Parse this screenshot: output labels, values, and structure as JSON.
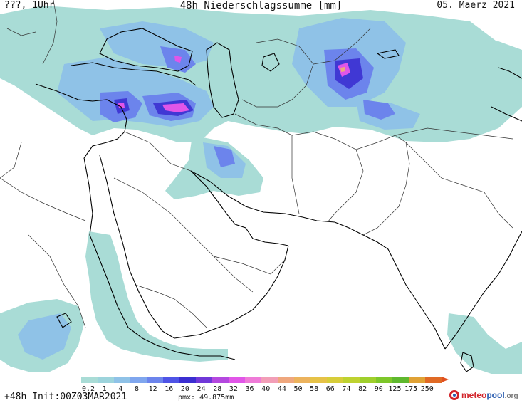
{
  "header": {
    "left": "???, 1Uhr",
    "title": "48h Niederschlagssumme [mm]",
    "date": "05. Maerz 2021"
  },
  "legend": {
    "labels": [
      "0.2",
      "1",
      "4",
      "8",
      "12",
      "16",
      "20",
      "24",
      "28",
      "32",
      "36",
      "40",
      "44",
      "50",
      "58",
      "66",
      "74",
      "82",
      "90",
      "125",
      "175",
      "250"
    ],
    "colors": [
      "#a9dcd6",
      "#9dd4dc",
      "#8fc2e7",
      "#7fa6ee",
      "#6c84ec",
      "#4f54e6",
      "#3b2ed1",
      "#7038d8",
      "#b448df",
      "#e156e8",
      "#ef7bd8",
      "#f29eb7",
      "#efa77e",
      "#ecb35d",
      "#e6c247",
      "#d7cd3a",
      "#bed230",
      "#9fcf2c",
      "#7ec72a",
      "#5fb82e",
      "#e0a235",
      "#e06a25"
    ],
    "tip_color": "#e0501f"
  },
  "footer": {
    "run": "+48h Init:00Z03MAR2021",
    "pmx": "pmx: 49.875mm"
  },
  "logo": {
    "brand_a": "meteo",
    "brand_b": "pool",
    "brand_c": ".org"
  },
  "map_colors": {
    "light": "#a9dcd6",
    "light2": "#9ad2df",
    "mid": "#8fc2e7",
    "blue": "#7fa6ee",
    "deep": "#5c6ee8",
    "violet": "#4038d4",
    "magenta": "#e156e8",
    "orange": "#efa77e",
    "coast": "#000000",
    "border": "#222222"
  }
}
